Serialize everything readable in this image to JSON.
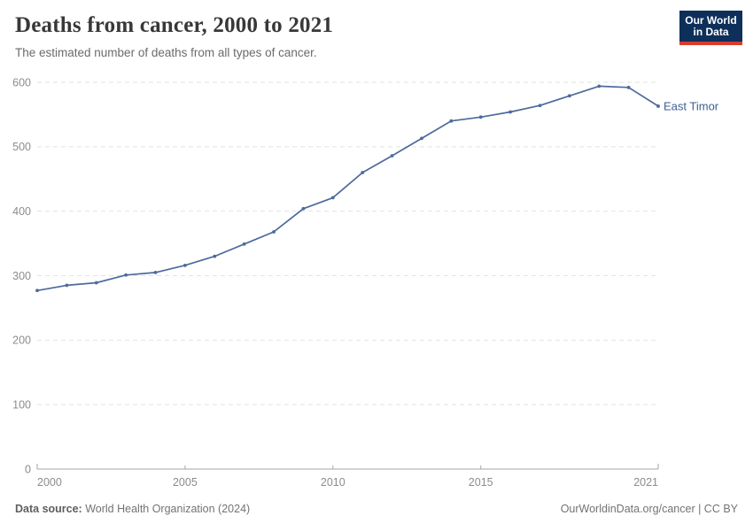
{
  "header": {
    "title": "Deaths from cancer, 2000 to 2021",
    "subtitle": "The estimated number of deaths from all types of cancer.",
    "logo": {
      "line1": "Our World",
      "line2": "in Data",
      "bg_color": "#0e2f5a",
      "accent_color": "#d73c2c"
    }
  },
  "chart_data": {
    "type": "line",
    "title": "Deaths from cancer, 2000 to 2021",
    "xlabel": "",
    "ylabel": "",
    "entity_label": "East Timor",
    "x": [
      2000,
      2001,
      2002,
      2003,
      2004,
      2005,
      2006,
      2007,
      2008,
      2009,
      2010,
      2011,
      2012,
      2013,
      2014,
      2015,
      2016,
      2017,
      2018,
      2019,
      2020,
      2021
    ],
    "series": [
      {
        "name": "East Timor",
        "values": [
          277,
          285,
          289,
          301,
          305,
          316,
          330,
          349,
          368,
          404,
          421,
          460,
          486,
          513,
          540,
          546,
          554,
          564,
          579,
          594,
          592,
          563
        ]
      }
    ],
    "ylim": [
      0,
      600
    ],
    "yticks": [
      0,
      100,
      200,
      300,
      400,
      500,
      600
    ],
    "xticks": [
      2000,
      2005,
      2010,
      2015,
      2021
    ],
    "grid": "horizontal-dashed",
    "legend_position": "end-of-line",
    "line_color": "#4c6a9c",
    "entity_label_color": "#3d5e96",
    "axis_color": "#a6a6a6",
    "tick_label_color": "#8c8c8c",
    "grid_color": "#e2e2e2"
  },
  "footer": {
    "source_label": "Data source:",
    "source_value": "World Health Organization (2024)",
    "license": "OurWorldinData.org/cancer | CC BY"
  }
}
